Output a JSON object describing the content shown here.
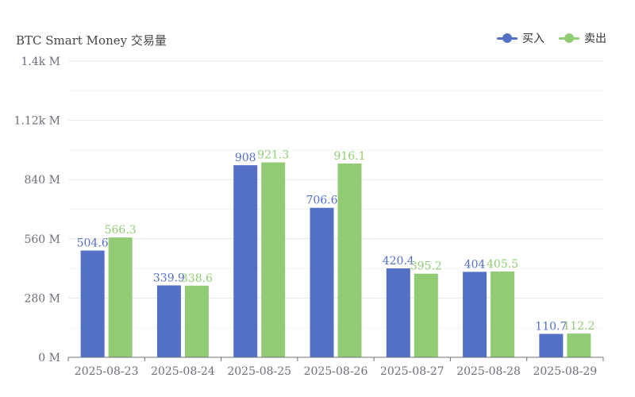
{
  "colors": {
    "buy": "#5470c6",
    "sell": "#91cc75",
    "grid": "#e8e8e8",
    "axis": "#6e7079"
  },
  "legend": {
    "items": [
      {
        "label": "买入",
        "color": "#5470c6"
      },
      {
        "label": "卖出",
        "color": "#91cc75"
      }
    ],
    "position": "top-right"
  },
  "chart_data": {
    "type": "bar",
    "title": "BTC Smart Money 交易量",
    "xlabel": "",
    "ylabel": "",
    "categories": [
      "2025-08-23",
      "2025-08-24",
      "2025-08-25",
      "2025-08-26",
      "2025-08-27",
      "2025-08-28",
      "2025-08-29"
    ],
    "series": [
      {
        "name": "买入",
        "values": [
          504.6,
          339.9,
          908,
          706.6,
          420.4,
          404,
          110.7
        ],
        "labels": [
          "504.6",
          "339.9",
          "908",
          "706.6",
          "420.4",
          "404",
          "110.7"
        ]
      },
      {
        "name": "卖出",
        "values": [
          566.3,
          338.6,
          921.3,
          916.1,
          395.2,
          405.5,
          112.2
        ],
        "labels": [
          "566.3",
          "338.6",
          "921.3",
          "916.1",
          "395.2",
          "405.5",
          "112.2"
        ]
      }
    ],
    "ylim": [
      0,
      1400
    ],
    "yticks": [
      0,
      280,
      560,
      840,
      1120,
      1400
    ],
    "ytick_labels": [
      "0 M",
      "280 M",
      "560 M",
      "840 M",
      "1.12k M",
      "1.4k M"
    ],
    "grid": true
  }
}
